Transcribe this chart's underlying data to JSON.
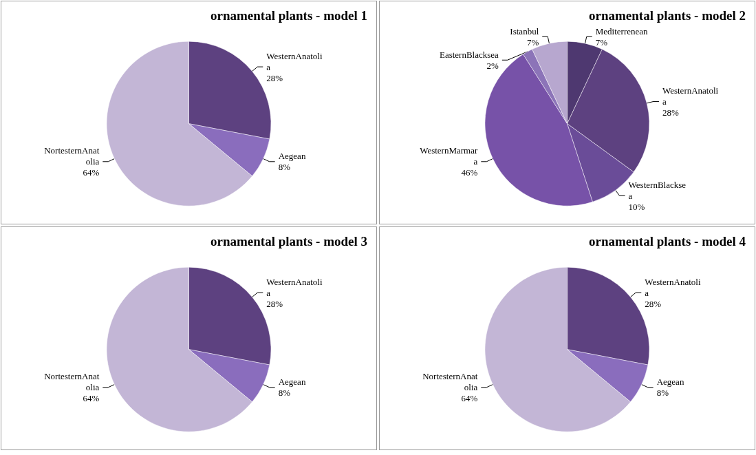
{
  "chart_data": [
    {
      "type": "pie",
      "title": "ornamental plants - model 1",
      "categories": [
        "WesternAnatolia",
        "Aegean",
        "NortesternAnatolia"
      ],
      "values": [
        28,
        8,
        64
      ],
      "colors": [
        "#5d4180",
        "#8a6dbd",
        "#c3b6d6"
      ],
      "value_labels": [
        "28%",
        "8%",
        "64%"
      ],
      "legend": false
    },
    {
      "type": "pie",
      "title": "ornamental plants - model 2",
      "categories": [
        "Mediterrenean",
        "WesternAnatolia",
        "WesternBlacksea",
        "WesternMarmara",
        "EasternBlacksea",
        "Istanbul"
      ],
      "values": [
        7,
        28,
        10,
        46,
        2,
        7
      ],
      "colors": [
        "#4e3870",
        "#5d4180",
        "#6a4c98",
        "#7752a8",
        "#8c74b8",
        "#b7a7cf"
      ],
      "value_labels": [
        "7%",
        "28%",
        "10%",
        "46%",
        "2%",
        "7%"
      ],
      "legend": false
    },
    {
      "type": "pie",
      "title": "ornamental plants - model 3",
      "categories": [
        "WesternAnatolia",
        "Aegean",
        "NortesternAnatolia"
      ],
      "values": [
        28,
        8,
        64
      ],
      "colors": [
        "#5d4180",
        "#8a6dbd",
        "#c3b6d6"
      ],
      "value_labels": [
        "28%",
        "8%",
        "64%"
      ],
      "legend": false
    },
    {
      "type": "pie",
      "title": "ornamental plants - model 4",
      "categories": [
        "WesternAnatolia",
        "Aegean",
        "NortesternAnatolia"
      ],
      "values": [
        28,
        8,
        64
      ],
      "colors": [
        "#5d4180",
        "#8a6dbd",
        "#c3b6d6"
      ],
      "value_labels": [
        "28%",
        "8%",
        "64%"
      ],
      "legend": false
    }
  ]
}
